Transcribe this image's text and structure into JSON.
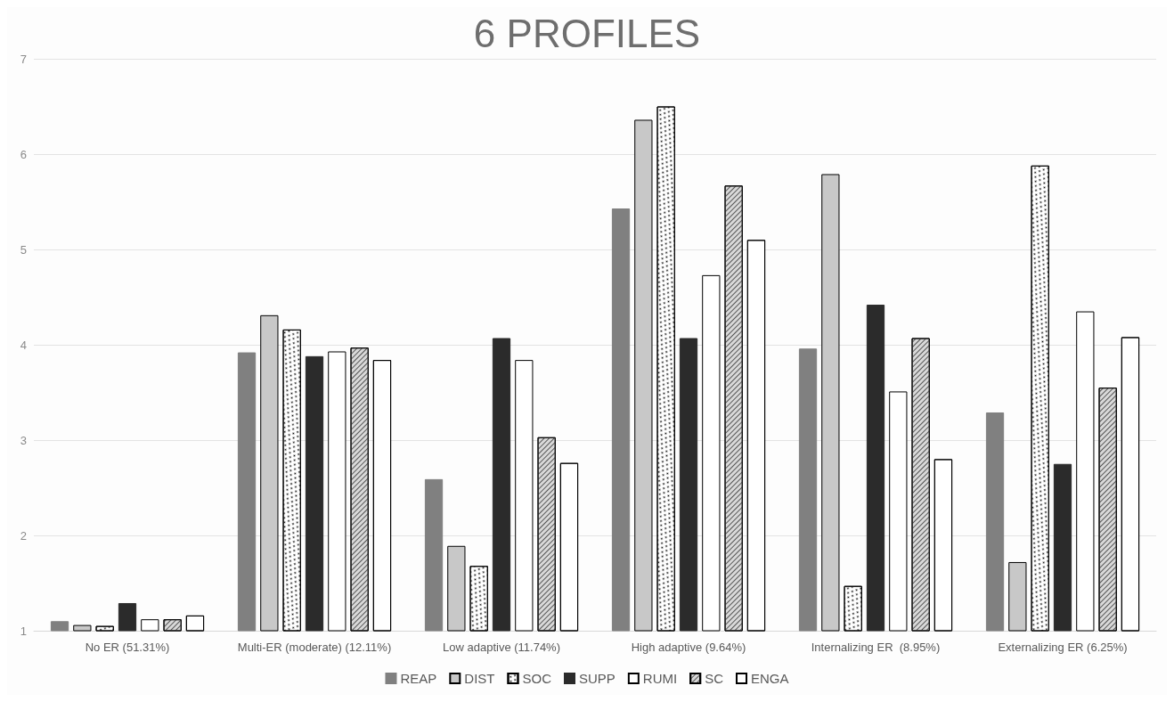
{
  "chart_data": {
    "type": "bar",
    "title": "6 PROFILES",
    "categories": [
      "No ER (51.31%)",
      "Multi-ER (moderate) (12.11%)",
      "Low adaptive (11.74%)",
      "High adaptive (9.64%)",
      "Internalizing ER  (8.95%)",
      "Externalizing ER (6.25%)"
    ],
    "series": [
      {
        "name": "REAP",
        "color": "#808080",
        "values": [
          1.1,
          3.92,
          2.59,
          5.43,
          3.96,
          3.29
        ]
      },
      {
        "name": "DIST",
        "color": "#c8c8c8",
        "values": [
          1.06,
          4.31,
          1.89,
          6.36,
          5.79,
          1.72
        ]
      },
      {
        "name": "SOC",
        "color": "#ffffff",
        "values": [
          1.05,
          4.16,
          1.68,
          6.5,
          1.47,
          5.88
        ]
      },
      {
        "name": "SUPP",
        "color": "#2b2b2b",
        "values": [
          1.29,
          3.88,
          4.07,
          4.07,
          4.42,
          2.75
        ]
      },
      {
        "name": "RUMI",
        "color": "#ffffff",
        "values": [
          1.12,
          3.93,
          3.84,
          4.73,
          3.51,
          4.35
        ]
      },
      {
        "name": "SC",
        "color": "#d9d9d9",
        "values": [
          1.12,
          3.97,
          3.03,
          5.67,
          4.07,
          3.55
        ]
      },
      {
        "name": "ENGA",
        "color": "#ffffff",
        "values": [
          1.16,
          3.84,
          2.76,
          5.1,
          2.8,
          4.08
        ]
      }
    ],
    "ylim": [
      1,
      7
    ],
    "yticks": [
      1,
      2,
      3,
      4,
      5,
      6,
      7
    ],
    "grid": "y",
    "legend": "bottom"
  }
}
